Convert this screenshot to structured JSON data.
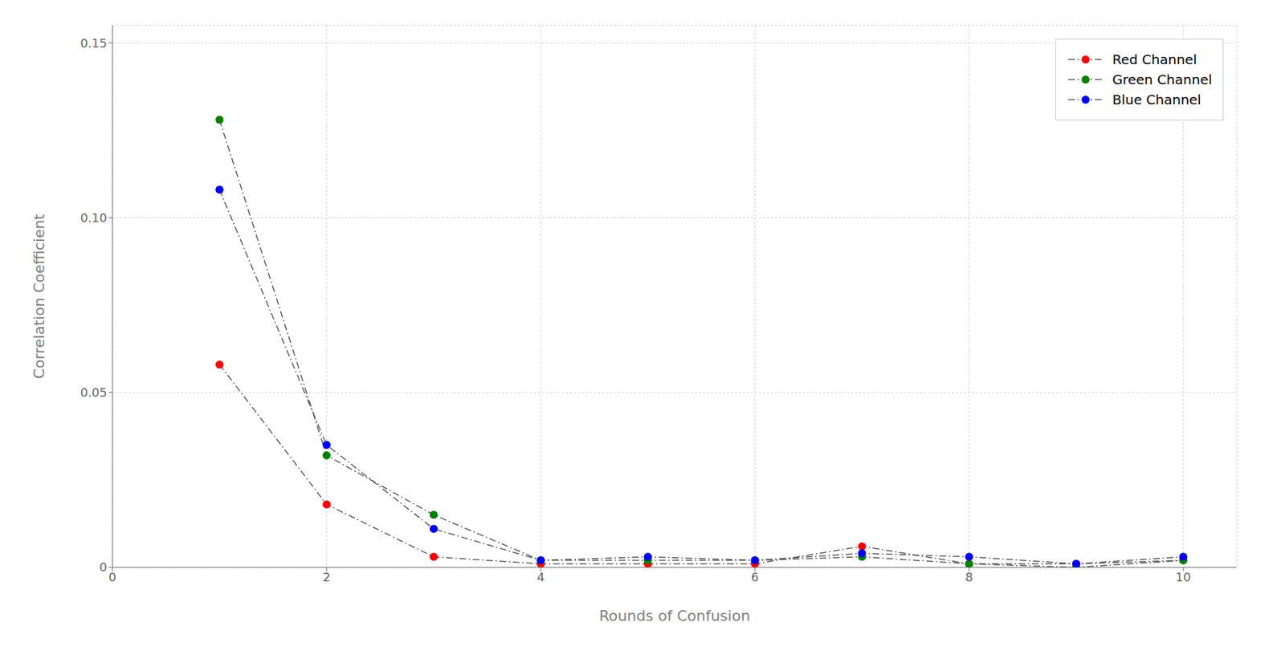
{
  "chart_data": {
    "type": "line",
    "xlabel": "Rounds of Confusion",
    "ylabel": "Correlation Coefficient",
    "x": [
      1,
      2,
      3,
      4,
      5,
      6,
      7,
      8,
      9,
      10
    ],
    "series": [
      {
        "name": "Red Channel",
        "color": "#ff0000",
        "values": [
          0.058,
          0.018,
          0.003,
          0.001,
          0.001,
          0.001,
          0.006,
          0.001,
          0.001,
          0.002
        ]
      },
      {
        "name": "Green Channel",
        "color": "#008000",
        "values": [
          0.128,
          0.032,
          0.015,
          0.002,
          0.002,
          0.002,
          0.003,
          0.001,
          0.0,
          0.002
        ]
      },
      {
        "name": "Blue Channel",
        "color": "#0000ff",
        "values": [
          0.108,
          0.035,
          0.011,
          0.002,
          0.003,
          0.002,
          0.004,
          0.003,
          0.001,
          0.003
        ]
      }
    ],
    "color": "#555555",
    "line_style": "dashdot",
    "marker": "circle",
    "xlim": [
      0,
      10.5
    ],
    "ylim": [
      0,
      0.155
    ],
    "xticks": [
      0,
      2,
      4,
      6,
      8,
      10
    ],
    "yticks": [
      0,
      0.05,
      {
        "value": 0.1,
        "label": "0.10"
      },
      0.15
    ],
    "grid": true,
    "legend": "upper right"
  }
}
